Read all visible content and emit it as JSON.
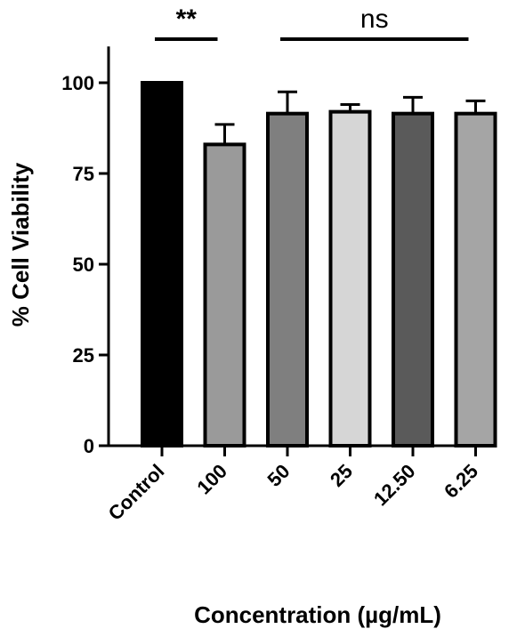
{
  "chart_data": {
    "type": "bar",
    "xlabel": "Concentration (µg/mL)",
    "ylabel": "% Cell Viability",
    "ylim": [
      0,
      110
    ],
    "yticks": [
      0,
      25,
      50,
      75,
      100
    ],
    "categories": [
      "Control",
      "100",
      "50",
      "25",
      "12.50",
      "6.25"
    ],
    "values": [
      100,
      83,
      91.5,
      92,
      91.5,
      91.5
    ],
    "errors": [
      0,
      5.5,
      6,
      2,
      4.5,
      3.5
    ],
    "colors": [
      "#000000",
      "#9a9a9a",
      "#7f7f7f",
      "#d6d6d6",
      "#5a5a5a",
      "#a5a5a5"
    ],
    "grid": false,
    "legend": "none",
    "annotations": [
      {
        "label": "**",
        "from": "Control",
        "to": "100"
      },
      {
        "label": "ns",
        "from": "50",
        "to": "6.25"
      }
    ]
  }
}
